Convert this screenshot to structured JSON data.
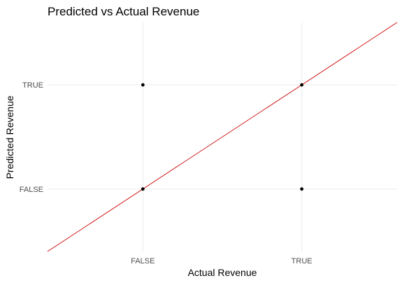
{
  "chart_data": {
    "type": "scatter",
    "title": "Predicted vs Actual Revenue",
    "xlabel": "Actual Revenue",
    "ylabel": "Predicted Revenue",
    "x_categories": [
      "FALSE",
      "TRUE"
    ],
    "y_categories": [
      "FALSE",
      "TRUE"
    ],
    "points": [
      {
        "x": "FALSE",
        "y": "TRUE"
      },
      {
        "x": "TRUE",
        "y": "TRUE"
      },
      {
        "x": "FALSE",
        "y": "FALSE"
      },
      {
        "x": "TRUE",
        "y": "FALSE"
      }
    ],
    "reference_line": {
      "kind": "identity",
      "slope": 1,
      "intercept": 0,
      "color": "#cc0000"
    },
    "point_color": "#000000",
    "grid": true,
    "legend": "none"
  }
}
